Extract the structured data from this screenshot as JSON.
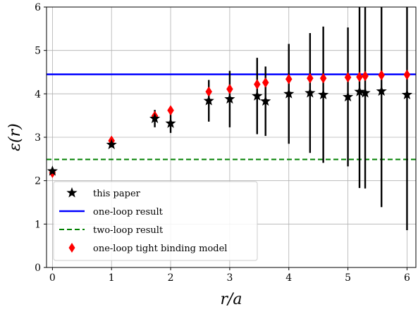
{
  "chart_data": {
    "type": "scatter",
    "title": "",
    "xlabel": "r/a",
    "ylabel": "ε(r)",
    "xlim": [
      -0.1,
      6.15
    ],
    "ylim": [
      0,
      6
    ],
    "xticks": [
      0,
      1,
      2,
      3,
      4,
      5,
      6
    ],
    "yticks": [
      0,
      1,
      2,
      3,
      4,
      5,
      6
    ],
    "grid": true,
    "legend_position": "lower-left",
    "series": [
      {
        "name": "this paper",
        "kind": "star-errorbar",
        "color": "#000000",
        "points": [
          {
            "x": 0,
            "y": 2.22,
            "err": 0.05
          },
          {
            "x": 1,
            "y": 2.83,
            "err": 0.06
          },
          {
            "x": 1.732,
            "y": 3.43,
            "err": 0.2
          },
          {
            "x": 2,
            "y": 3.32,
            "err": 0.22
          },
          {
            "x": 2.646,
            "y": 3.84,
            "err": 0.48
          },
          {
            "x": 3,
            "y": 3.88,
            "err": 0.65
          },
          {
            "x": 3.464,
            "y": 3.95,
            "err": 0.88
          },
          {
            "x": 3.606,
            "y": 3.83,
            "err": 0.8
          },
          {
            "x": 4,
            "y": 4.0,
            "err": 1.15
          },
          {
            "x": 4.359,
            "y": 4.02,
            "err": 1.38
          },
          {
            "x": 4.583,
            "y": 3.98,
            "err": 1.57
          },
          {
            "x": 5,
            "y": 3.93,
            "err": 1.6
          },
          {
            "x": 5.196,
            "y": 4.05,
            "err": 2.22
          },
          {
            "x": 5.292,
            "y": 4.02,
            "err": 2.2
          },
          {
            "x": 5.568,
            "y": 4.06,
            "err": 2.67
          },
          {
            "x": 6,
            "y": 3.98,
            "err": 3.12
          }
        ]
      },
      {
        "name": "one-loop result",
        "kind": "hline",
        "color": "#0000ff",
        "y": 4.45
      },
      {
        "name": "two-loop result",
        "kind": "hline-dashed",
        "color": "#008000",
        "y": 2.49
      },
      {
        "name": "one-loop tight binding model",
        "kind": "diamond",
        "color": "#ff0000",
        "points": [
          {
            "x": 0,
            "y": 2.18
          },
          {
            "x": 1,
            "y": 2.92
          },
          {
            "x": 1.732,
            "y": 3.49
          },
          {
            "x": 2,
            "y": 3.62
          },
          {
            "x": 2.646,
            "y": 4.05
          },
          {
            "x": 3,
            "y": 4.11
          },
          {
            "x": 3.464,
            "y": 4.22
          },
          {
            "x": 3.606,
            "y": 4.26
          },
          {
            "x": 4,
            "y": 4.34
          },
          {
            "x": 4.359,
            "y": 4.36
          },
          {
            "x": 4.583,
            "y": 4.36
          },
          {
            "x": 5,
            "y": 4.38
          },
          {
            "x": 5.196,
            "y": 4.39
          },
          {
            "x": 5.292,
            "y": 4.41
          },
          {
            "x": 5.568,
            "y": 4.43
          },
          {
            "x": 6,
            "y": 4.44
          }
        ]
      }
    ]
  }
}
